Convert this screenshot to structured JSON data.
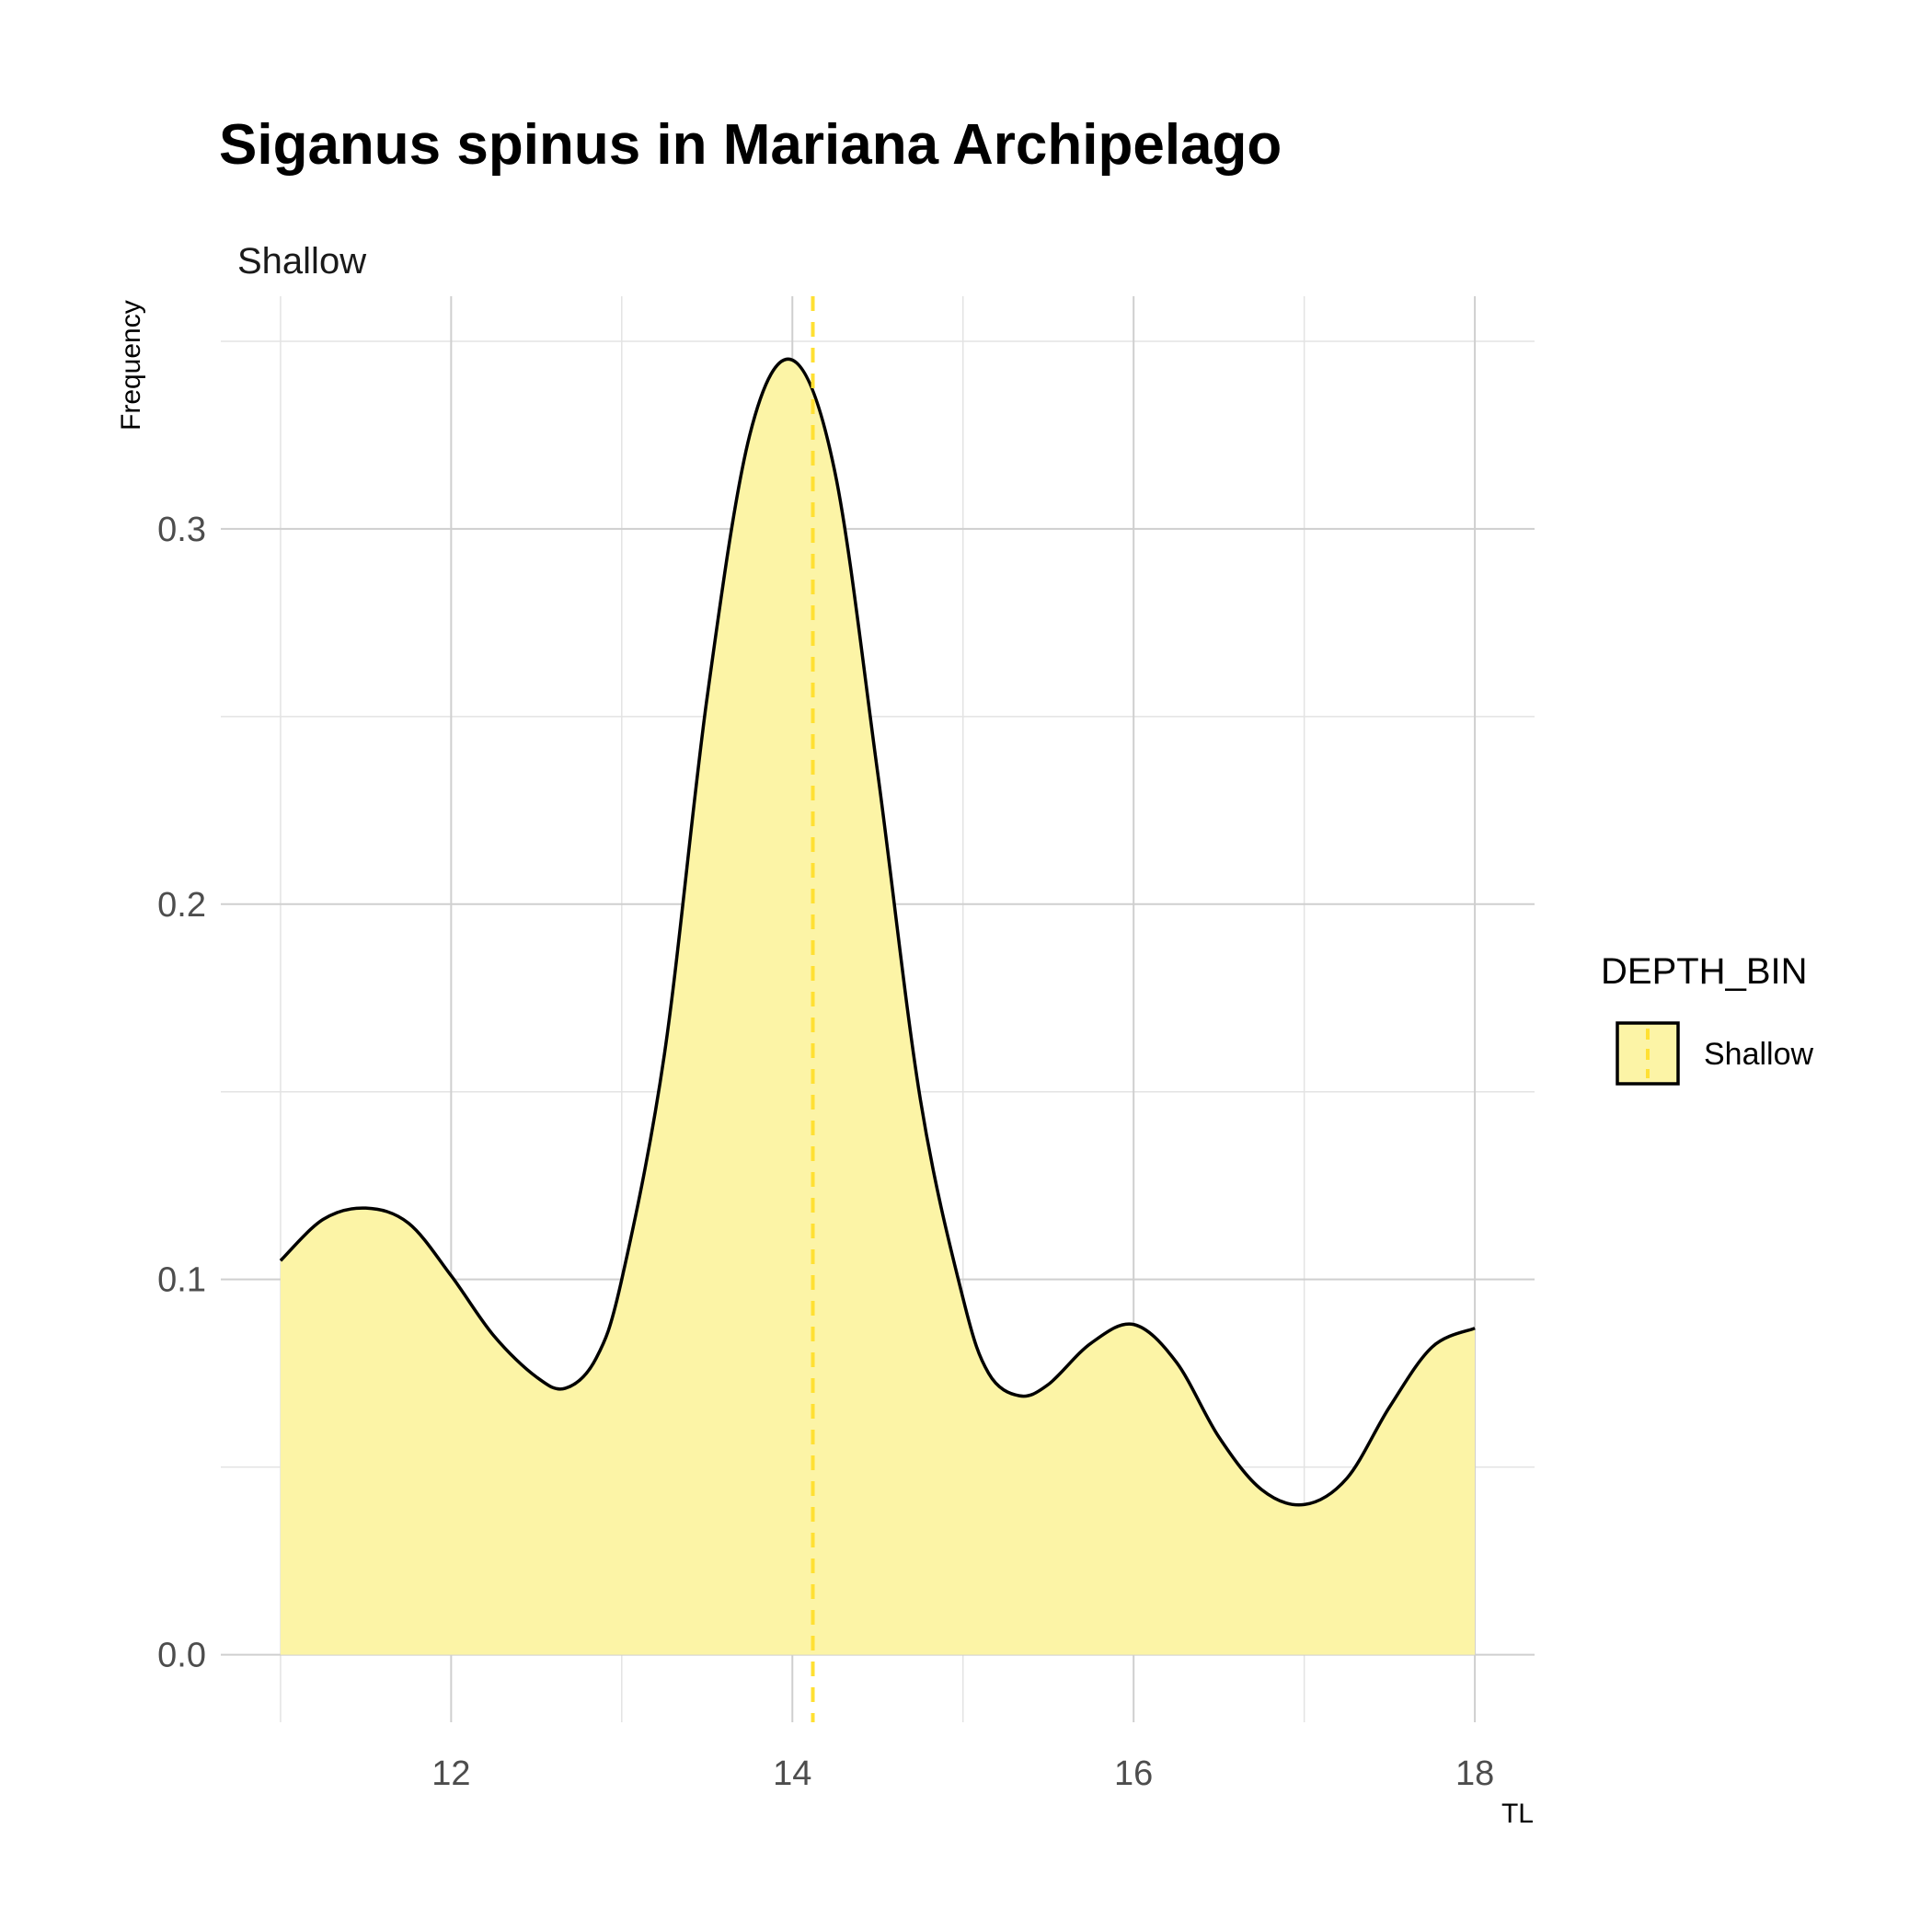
{
  "chart_data": {
    "type": "area",
    "title": "Siganus spinus in Mariana Archipelago",
    "facet_label": "Shallow",
    "xlabel": "TL",
    "ylabel": "Frequency",
    "xlim": [
      10.65,
      18.35
    ],
    "ylim": [
      -0.018,
      0.362
    ],
    "x_ticks": [
      12,
      14,
      16,
      18
    ],
    "x_tick_labels": [
      "12",
      "14",
      "16",
      "18"
    ],
    "y_ticks": [
      0.0,
      0.1,
      0.2,
      0.3
    ],
    "y_tick_labels": [
      "0.0",
      "0.1",
      "0.2",
      "0.3"
    ],
    "x_minor_gridlines": [
      11,
      13,
      15,
      17
    ],
    "y_minor_gridlines": [
      0.05,
      0.15,
      0.25,
      0.35
    ],
    "grid": true,
    "legend": {
      "title": "DEPTH_BIN",
      "placement": "right",
      "entries": [
        "Shallow"
      ]
    },
    "series": [
      {
        "name": "Shallow",
        "fill_color": "#fcf4a6",
        "line_color": "#000000",
        "x": [
          11.0,
          11.25,
          11.5,
          11.75,
          12.0,
          12.25,
          12.5,
          12.67,
          12.85,
          13.0,
          13.25,
          13.5,
          13.75,
          14.0,
          14.25,
          14.5,
          14.75,
          15.0,
          15.15,
          15.33,
          15.5,
          15.75,
          16.0,
          16.25,
          16.5,
          16.75,
          17.0,
          17.25,
          17.5,
          17.75,
          18.0
        ],
        "y": [
          0.105,
          0.116,
          0.119,
          0.115,
          0.101,
          0.085,
          0.074,
          0.071,
          0.079,
          0.1,
          0.16,
          0.255,
          0.325,
          0.345,
          0.315,
          0.235,
          0.148,
          0.095,
          0.075,
          0.069,
          0.072,
          0.083,
          0.088,
          0.078,
          0.058,
          0.044,
          0.04,
          0.047,
          0.066,
          0.082,
          0.087
        ]
      }
    ],
    "mean_line": {
      "x": 14.12,
      "color": "#ffe033",
      "style": "dashed"
    }
  }
}
